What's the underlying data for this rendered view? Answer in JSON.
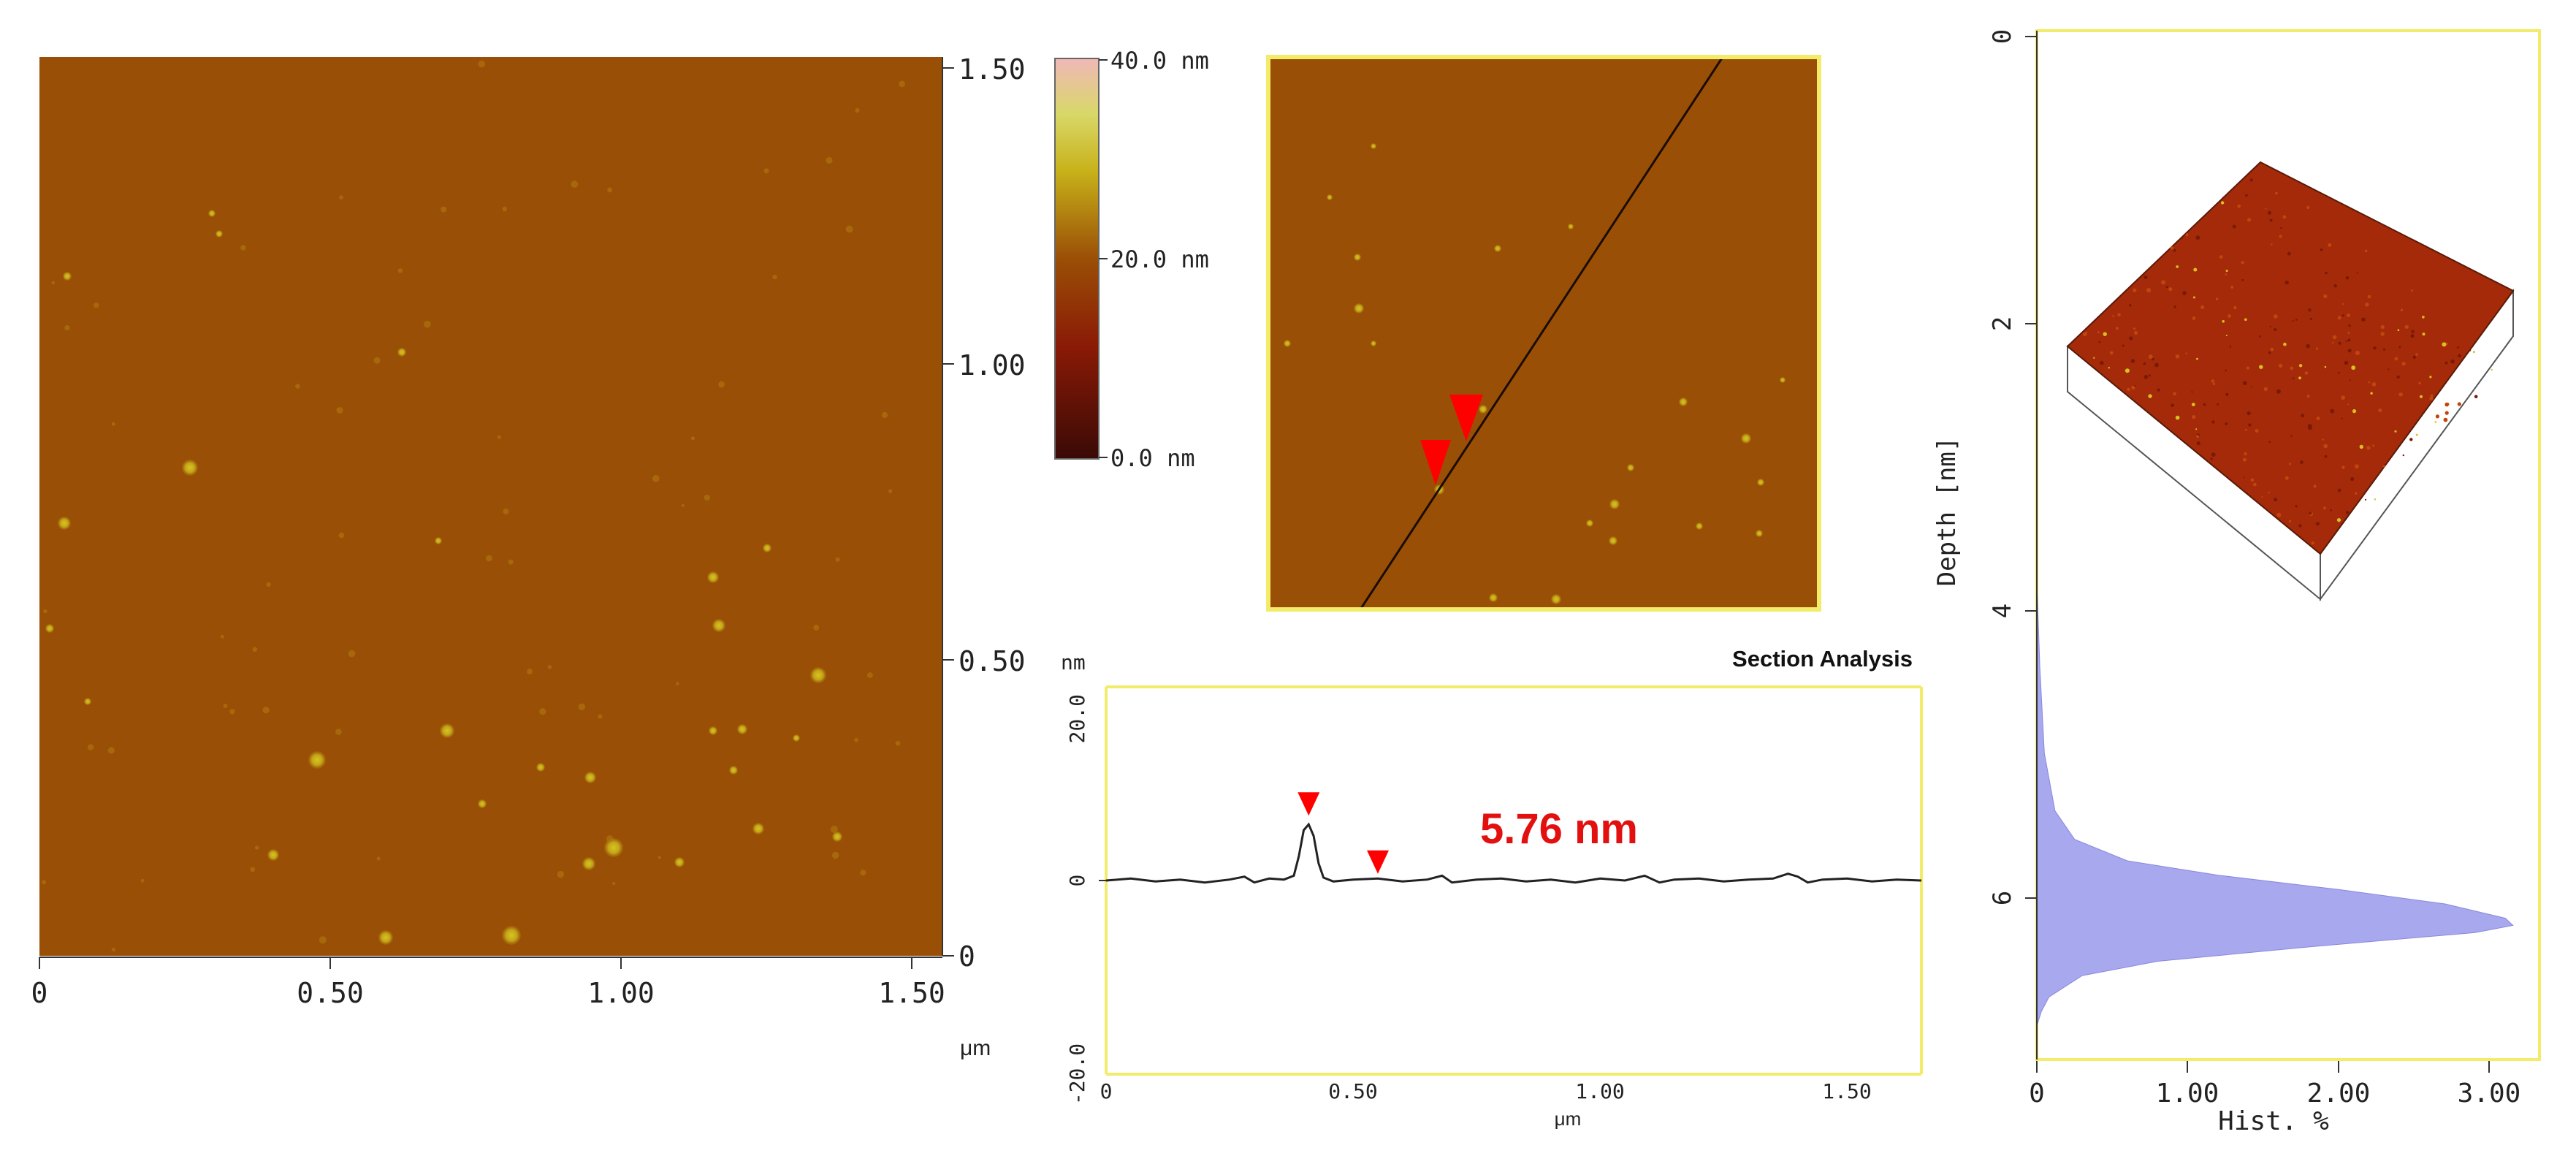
{
  "colors": {
    "afm_base": "#9a4f06",
    "afm_particle": "#c8b21a",
    "scan_line": "#1a0c04",
    "arrow_red": "#ff0000",
    "frame_yellow": "#f2ec6a",
    "profile_line": "#222222",
    "annotation_red": "#e31010",
    "histogram_fill": "#a8a8ee",
    "colorbar_stops": [
      "#3a0a06",
      "#8a1a06",
      "#9a4f06",
      "#c8b21a",
      "#d8d868",
      "#f0b8b8"
    ]
  },
  "main_image": {
    "x_ticks": [
      "0",
      "0.50",
      "1.00",
      "1.50"
    ],
    "y_ticks": [
      "1.50",
      "1.00",
      "0.50",
      "0"
    ],
    "unit": "μm",
    "extent": [
      0,
      1.55
    ]
  },
  "colorbar": {
    "labels": [
      "40.0 nm",
      "20.0 nm",
      "0.0 nm"
    ],
    "range": [
      0,
      40
    ]
  },
  "section_image": {
    "markers": [
      "marker-1",
      "marker-2"
    ]
  },
  "chart_data": [
    {
      "type": "line",
      "title": "Section Analysis",
      "xlabel": "μm",
      "ylabel": "nm",
      "xlim": [
        0,
        1.65
      ],
      "ylim": [
        -20,
        20
      ],
      "x_ticks": [
        "0",
        "0.50",
        "1.00",
        "1.50"
      ],
      "y_ticks": [
        "20.0",
        "0",
        "-20.0"
      ],
      "annotation": "5.76 nm",
      "markers": [
        {
          "x": 0.41,
          "y": 7.6
        },
        {
          "x": 0.55,
          "y": 1.6
        }
      ],
      "series": [
        {
          "x": [
            0,
            0.05,
            0.1,
            0.15,
            0.2,
            0.25,
            0.28,
            0.3,
            0.33,
            0.36,
            0.38,
            0.39,
            0.4,
            0.41,
            0.42,
            0.43,
            0.44,
            0.46,
            0.5,
            0.55,
            0.6,
            0.65,
            0.68,
            0.7,
            0.75,
            0.8,
            0.85,
            0.9,
            0.95,
            1.0,
            1.05,
            1.09,
            1.12,
            1.15,
            1.2,
            1.25,
            1.3,
            1.35,
            1.38,
            1.4,
            1.42,
            1.45,
            1.5,
            1.55,
            1.6,
            1.65
          ],
          "values": [
            0,
            0.2,
            -0.1,
            0.1,
            -0.2,
            0.1,
            0.4,
            -0.2,
            0.2,
            0.1,
            0.5,
            2.5,
            5.2,
            5.8,
            4.6,
            1.8,
            0.3,
            -0.1,
            0.1,
            0.2,
            -0.1,
            0.1,
            0.5,
            -0.2,
            0.1,
            0.2,
            -0.1,
            0.1,
            -0.2,
            0.2,
            0,
            0.5,
            -0.2,
            0.1,
            0.2,
            -0.1,
            0.1,
            0.2,
            0.7,
            0.4,
            -0.2,
            0.1,
            0.2,
            -0.1,
            0.1,
            0
          ]
        }
      ]
    },
    {
      "type": "area",
      "orientation": "horizontal",
      "xlabel": "Hist. %",
      "ylabel": "Depth [nm]",
      "xlim": [
        0,
        3.2
      ],
      "ylim": [
        0,
        7.1
      ],
      "y_inverted": true,
      "x_ticks": [
        "0",
        "1.00",
        "2.00",
        "3.00"
      ],
      "y_ticks": [
        "0",
        "2",
        "4",
        "6"
      ],
      "series": [
        {
          "depth": [
            3.8,
            4.4,
            5.0,
            5.4,
            5.6,
            5.75,
            5.85,
            5.95,
            6.05,
            6.15,
            6.2,
            6.25,
            6.35,
            6.45,
            6.55,
            6.7,
            6.8,
            6.9
          ],
          "values": [
            0,
            0.02,
            0.05,
            0.12,
            0.25,
            0.6,
            1.2,
            2.0,
            2.7,
            3.1,
            3.15,
            2.9,
            1.8,
            0.8,
            0.3,
            0.08,
            0.03,
            0
          ]
        }
      ]
    }
  ]
}
